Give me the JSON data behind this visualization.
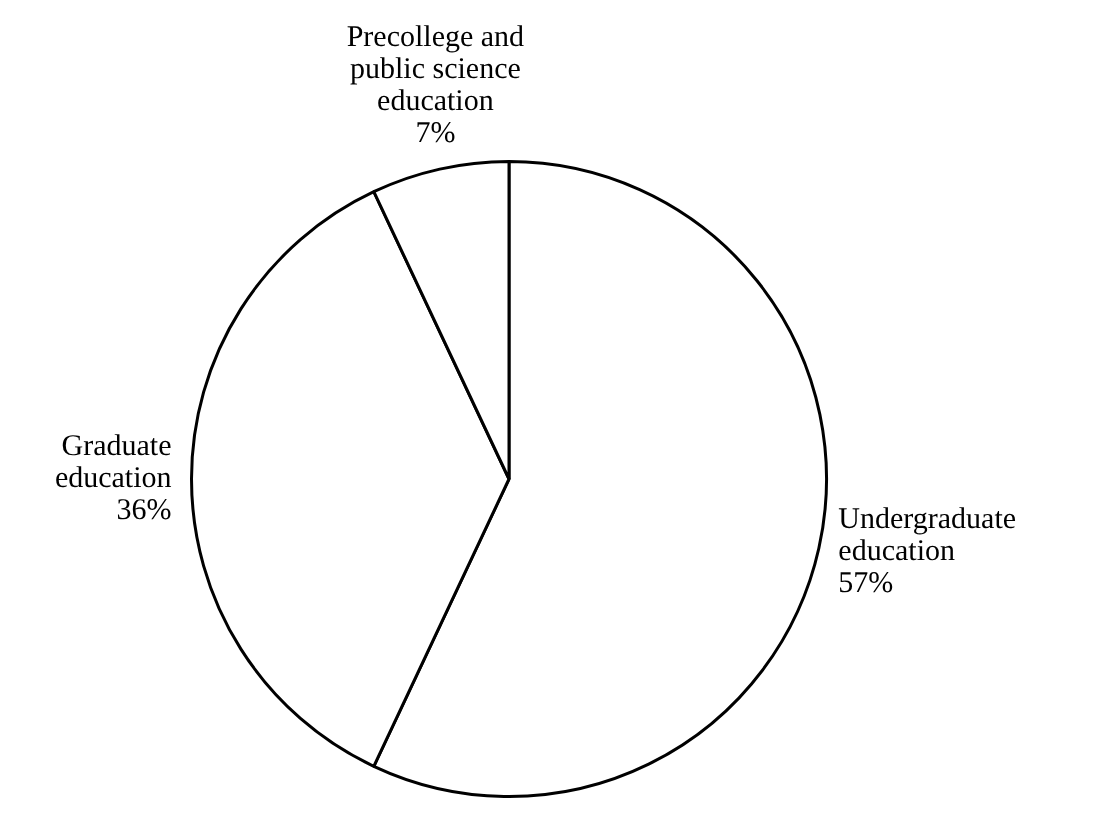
{
  "chart_data": {
    "type": "pie",
    "categories": [
      "Undergraduate\neducation",
      "Graduate\neducation",
      "Precollege and\npublic science\neducation"
    ],
    "values": [
      57,
      36,
      7
    ],
    "value_labels": [
      "57%",
      "36%",
      "7%"
    ],
    "colors": [
      "#ffffff",
      "#ffffff",
      "#ffffff"
    ],
    "legend": false
  }
}
